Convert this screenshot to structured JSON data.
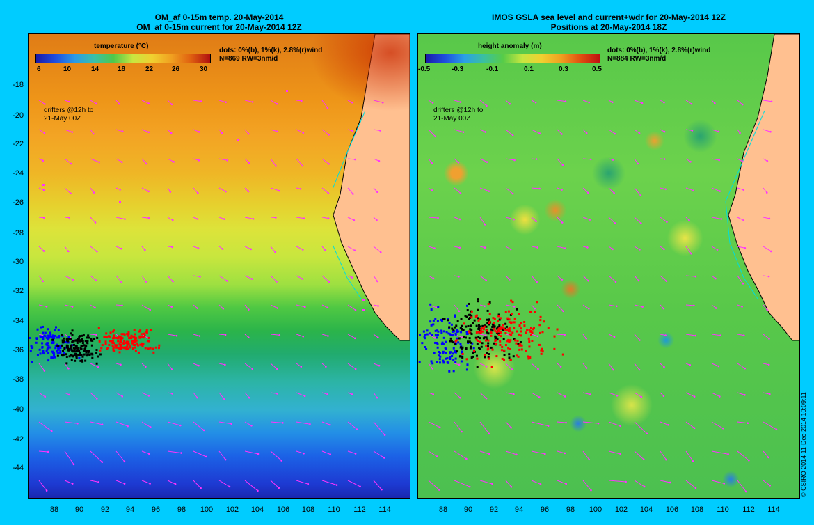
{
  "panels": [
    {
      "title_line1": "OM_af 0-15m temp. 20-May-2014",
      "title_line2": "OM_af 0-15m current for 20-May-2014 12Z",
      "colorbar_title": "temperature (°C)",
      "colorbar_ticks": [
        "6",
        "10",
        "14",
        "18",
        "22",
        "26",
        "30"
      ],
      "dots_note": "dots: 0%(b), 1%(k), 2.8%(r)wind",
      "n_note": "N=869 RW=3nm/d",
      "drifters_line1": "drifters @12h to",
      "drifters_line2": "21-May 00Z"
    },
    {
      "title_line1": "IMOS GSLA sea level and current+wdr for 20-May-2014 12Z",
      "title_line2": "Positions at 20-May-2014 18Z",
      "colorbar_title": "height anomaly (m)",
      "colorbar_ticks": [
        "-0.5",
        "-0.3",
        "-0.1",
        "0.1",
        "0.3",
        "0.5"
      ],
      "dots_note": "dots: 0%(b), 1%(k), 2.8%(r)wind",
      "n_note": "N=884 RW=3nm/d",
      "drifters_line1": "drifters @12h to",
      "drifters_line2": "21-May 00Z"
    }
  ],
  "lat_labels": [
    "-18",
    "-20",
    "-22",
    "-24",
    "-26",
    "-28",
    "-30",
    "-32",
    "-34",
    "-36",
    "-38",
    "-40",
    "-42",
    "-44"
  ],
  "lon_labels": [
    "88",
    "90",
    "92",
    "94",
    "96",
    "98",
    "100",
    "102",
    "104",
    "106",
    "108",
    "110",
    "112",
    "114"
  ],
  "credit": "© CSIRO 2014   11-Dec-2014 10:09:11",
  "colors": {
    "background": "#00ccff",
    "arrow": "#ff33ff",
    "land": "#ffc090",
    "coast": "#00dddd"
  }
}
